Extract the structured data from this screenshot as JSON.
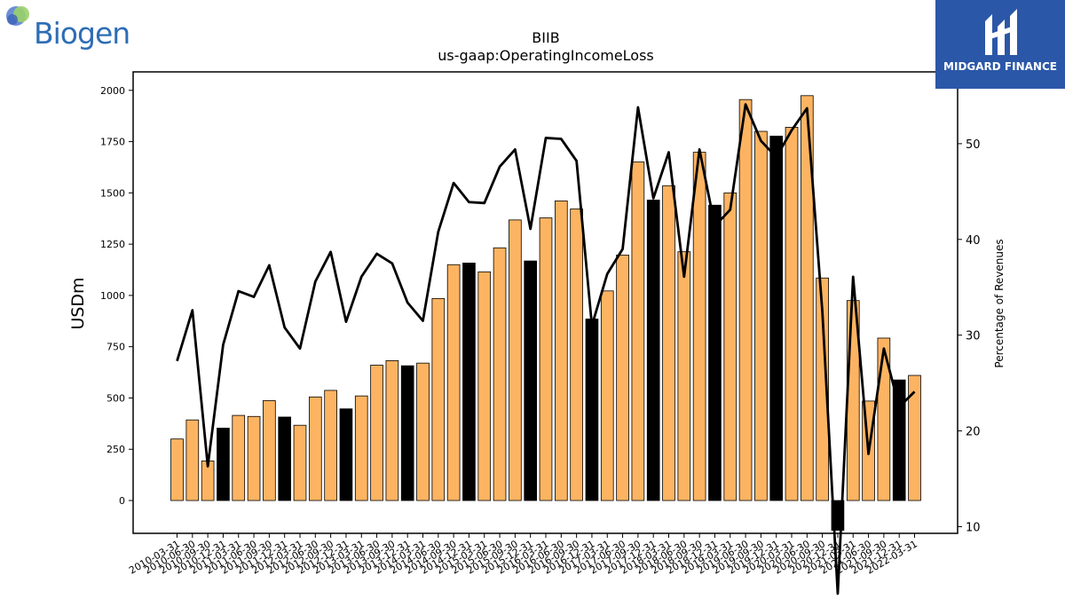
{
  "logos": {
    "left_text": "Biogen",
    "right_text": "MIDGARD FINANCE"
  },
  "colors": {
    "normal_bar": "#fdb462",
    "q4_bar": "#000000",
    "line": "#000000"
  },
  "chart_data": {
    "type": "bar",
    "title": "BIIB",
    "subtitle": "us-gaap:OperatingIncomeLoss",
    "ylabel": "USDm",
    "y2label": "Percentage of Revenues",
    "ylim": [
      -160,
      2090
    ],
    "y2lim": [
      9.3,
      57.5
    ],
    "yticks": [
      0,
      250,
      500,
      750,
      1000,
      1250,
      1500,
      1750,
      2000
    ],
    "y2ticks": [
      10,
      20,
      30,
      40,
      50
    ],
    "categories": [
      "2010-03-31",
      "2010-06-30",
      "2010-09-30",
      "2010-12-31",
      "2011-03-31",
      "2011-06-30",
      "2011-09-30",
      "2011-12-31",
      "2012-03-31",
      "2012-06-30",
      "2012-09-30",
      "2012-12-31",
      "2013-03-31",
      "2013-06-30",
      "2013-09-30",
      "2013-12-31",
      "2014-03-31",
      "2014-06-30",
      "2014-09-30",
      "2014-12-31",
      "2015-03-31",
      "2015-06-30",
      "2015-09-30",
      "2015-12-31",
      "2016-03-31",
      "2016-06-30",
      "2016-09-30",
      "2016-12-31",
      "2017-03-31",
      "2017-06-30",
      "2017-09-30",
      "2017-12-31",
      "2018-03-31",
      "2018-06-30",
      "2018-09-30",
      "2018-12-31",
      "2019-03-31",
      "2019-06-30",
      "2019-09-30",
      "2019-12-31",
      "2020-03-31",
      "2020-06-30",
      "2020-09-30",
      "2020-12-31",
      "2021-03-31",
      "2021-06-30",
      "2021-09-30",
      "2021-12-31",
      "2022-03-31"
    ],
    "series": [
      {
        "type": "bar",
        "values": [
          300,
          393,
          193,
          353,
          415,
          410,
          487,
          407,
          367,
          505,
          537,
          447,
          510,
          660,
          682,
          657,
          670,
          985,
          1150,
          1158,
          1115,
          1232,
          1368,
          1168,
          1378,
          1461,
          1422,
          885,
          1022,
          1197,
          1651,
          1465,
          1535,
          1213,
          1698,
          1440,
          1500,
          1955,
          1800,
          1777,
          1820,
          1974,
          1085,
          -145,
          975,
          485,
          792,
          588,
          610
        ],
        "q4_index": [
          3,
          7,
          11,
          15,
          19,
          23,
          27,
          31,
          35,
          39,
          43,
          47
        ]
      },
      {
        "type": "line",
        "axis": "right",
        "values": [
          27.3,
          32.6,
          16.3,
          29.0,
          34.6,
          34.0,
          37.3,
          30.8,
          28.6,
          35.6,
          38.7,
          31.4,
          36.1,
          38.5,
          37.5,
          33.4,
          31.5,
          40.8,
          45.9,
          43.9,
          43.8,
          47.6,
          49.4,
          41.1,
          50.6,
          50.5,
          48.2,
          31.0,
          36.4,
          39.0,
          53.8,
          44.3,
          49.1,
          36.1,
          49.4,
          41.4,
          43.1,
          54.1,
          50.3,
          48.6,
          51.4,
          53.7,
          32.4,
          3.0,
          36.1,
          17.6,
          28.6,
          22.5,
          24.1
        ]
      }
    ]
  }
}
